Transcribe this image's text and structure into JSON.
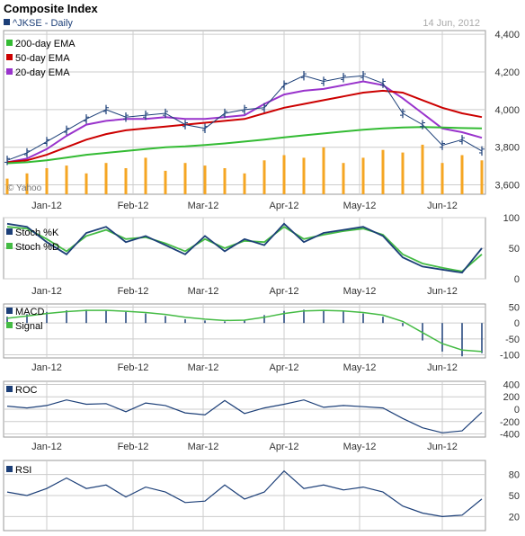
{
  "header": {
    "title": "Composite Index",
    "symbol_label": "^JKSE - Daily",
    "date": "14 Jun, 2012",
    "watermark": "© Yahoo"
  },
  "colors": {
    "price": "#1c3f78",
    "ema200": "#33bb33",
    "ema50": "#cc0000",
    "ema20": "#9933cc",
    "volume": "#f5a623",
    "stochK": "#1c3f78",
    "stochD": "#44bb44",
    "grid": "#cccccc",
    "axis_text": "#333333"
  },
  "x_axis": {
    "ticks": [
      "Jan-12",
      "Feb-12",
      "Mar-12",
      "Apr-12",
      "May-12",
      "Jun-12"
    ]
  },
  "chart_data": [
    {
      "type": "line",
      "panel": "price",
      "title": "Composite Index",
      "subtitle": "^JKSE - Daily",
      "y_ticks": [
        "4,400",
        "4,200",
        "4,000",
        "3,800",
        "3,600"
      ],
      "ylim": [
        3550,
        4420
      ],
      "legend": [
        "200-day EMA",
        "50-day EMA",
        "20-day EMA"
      ],
      "legend_position": "top-left",
      "series": [
        {
          "name": "^JKSE",
          "x": [
            "2011-12-28",
            "2012-01-04",
            "2012-01-11",
            "2012-01-18",
            "2012-01-25",
            "2012-02-01",
            "2012-02-08",
            "2012-02-15",
            "2012-02-22",
            "2012-02-29",
            "2012-03-07",
            "2012-03-14",
            "2012-03-21",
            "2012-03-28",
            "2012-04-04",
            "2012-04-11",
            "2012-04-18",
            "2012-04-25",
            "2012-05-02",
            "2012-05-09",
            "2012-05-16",
            "2012-05-23",
            "2012-05-30",
            "2012-06-06",
            "2012-06-14"
          ],
          "values": [
            3730,
            3770,
            3830,
            3890,
            3950,
            4000,
            3960,
            3970,
            3980,
            3920,
            3900,
            3980,
            4000,
            4010,
            4130,
            4180,
            4150,
            4170,
            4180,
            4140,
            3980,
            3920,
            3810,
            3840,
            3780
          ]
        },
        {
          "name": "20-day EMA",
          "values": [
            3720,
            3740,
            3790,
            3860,
            3920,
            3940,
            3950,
            3950,
            3960,
            3950,
            3950,
            3960,
            3970,
            4030,
            4080,
            4100,
            4110,
            4130,
            4150,
            4130,
            4060,
            3980,
            3900,
            3880,
            3850
          ]
        },
        {
          "name": "50-day EMA",
          "values": [
            3720,
            3730,
            3760,
            3800,
            3840,
            3870,
            3890,
            3900,
            3910,
            3920,
            3930,
            3940,
            3950,
            3980,
            4010,
            4030,
            4050,
            4070,
            4090,
            4100,
            4090,
            4050,
            4010,
            3980,
            3960
          ]
        },
        {
          "name": "200-day EMA",
          "values": [
            3715,
            3720,
            3730,
            3745,
            3760,
            3770,
            3780,
            3790,
            3800,
            3805,
            3812,
            3820,
            3830,
            3840,
            3852,
            3863,
            3873,
            3883,
            3893,
            3900,
            3905,
            3907,
            3905,
            3902,
            3900
          ]
        }
      ],
      "volume": [
        0.3,
        0.4,
        0.5,
        0.55,
        0.4,
        0.6,
        0.5,
        0.7,
        0.45,
        0.6,
        0.55,
        0.5,
        0.4,
        0.65,
        0.75,
        0.7,
        0.9,
        0.6,
        0.7,
        0.85,
        0.8,
        0.95,
        0.6,
        0.75,
        0.65
      ]
    },
    {
      "type": "line",
      "panel": "stochastic",
      "y_ticks": [
        "100",
        "50",
        "0"
      ],
      "ylim": [
        0,
        100
      ],
      "series": [
        {
          "name": "Stoch %K",
          "values": [
            90,
            85,
            60,
            40,
            75,
            85,
            60,
            70,
            55,
            40,
            70,
            45,
            65,
            55,
            90,
            60,
            75,
            80,
            85,
            70,
            35,
            20,
            15,
            10,
            50
          ]
        },
        {
          "name": "Stoch %D",
          "values": [
            85,
            82,
            65,
            45,
            70,
            80,
            65,
            68,
            58,
            45,
            65,
            50,
            62,
            60,
            85,
            65,
            72,
            78,
            82,
            72,
            40,
            25,
            18,
            12,
            40
          ]
        }
      ]
    },
    {
      "type": "bar",
      "panel": "macd",
      "y_ticks": [
        "50",
        "0",
        "-50",
        "-100"
      ],
      "ylim": [
        -110,
        60
      ],
      "series": [
        {
          "name": "MACD",
          "values": [
            20,
            28,
            35,
            40,
            42,
            40,
            35,
            30,
            22,
            12,
            8,
            5,
            10,
            25,
            38,
            42,
            40,
            38,
            30,
            20,
            -10,
            -55,
            -90,
            -105,
            -95
          ]
        },
        {
          "name": "Signal",
          "values": [
            15,
            22,
            30,
            36,
            40,
            40,
            37,
            33,
            27,
            18,
            12,
            8,
            9,
            18,
            30,
            38,
            40,
            38,
            33,
            25,
            5,
            -30,
            -65,
            -85,
            -90
          ]
        }
      ]
    },
    {
      "type": "line",
      "panel": "roc",
      "y_ticks": [
        "400",
        "200",
        "0",
        "-200",
        "-400"
      ],
      "ylim": [
        -450,
        450
      ],
      "series": [
        {
          "name": "ROC",
          "values": [
            50,
            20,
            60,
            150,
            80,
            90,
            -40,
            100,
            60,
            -60,
            -90,
            140,
            -70,
            20,
            80,
            150,
            30,
            60,
            40,
            20,
            -150,
            -300,
            -380,
            -350,
            -50
          ]
        }
      ]
    },
    {
      "type": "line",
      "panel": "rsi",
      "y_ticks": [
        "80",
        "50",
        "20"
      ],
      "ylim": [
        0,
        100
      ],
      "series": [
        {
          "name": "RSI",
          "values": [
            55,
            50,
            60,
            75,
            60,
            65,
            48,
            62,
            55,
            40,
            42,
            65,
            45,
            55,
            85,
            60,
            65,
            58,
            62,
            55,
            35,
            25,
            20,
            22,
            45
          ]
        }
      ]
    }
  ]
}
